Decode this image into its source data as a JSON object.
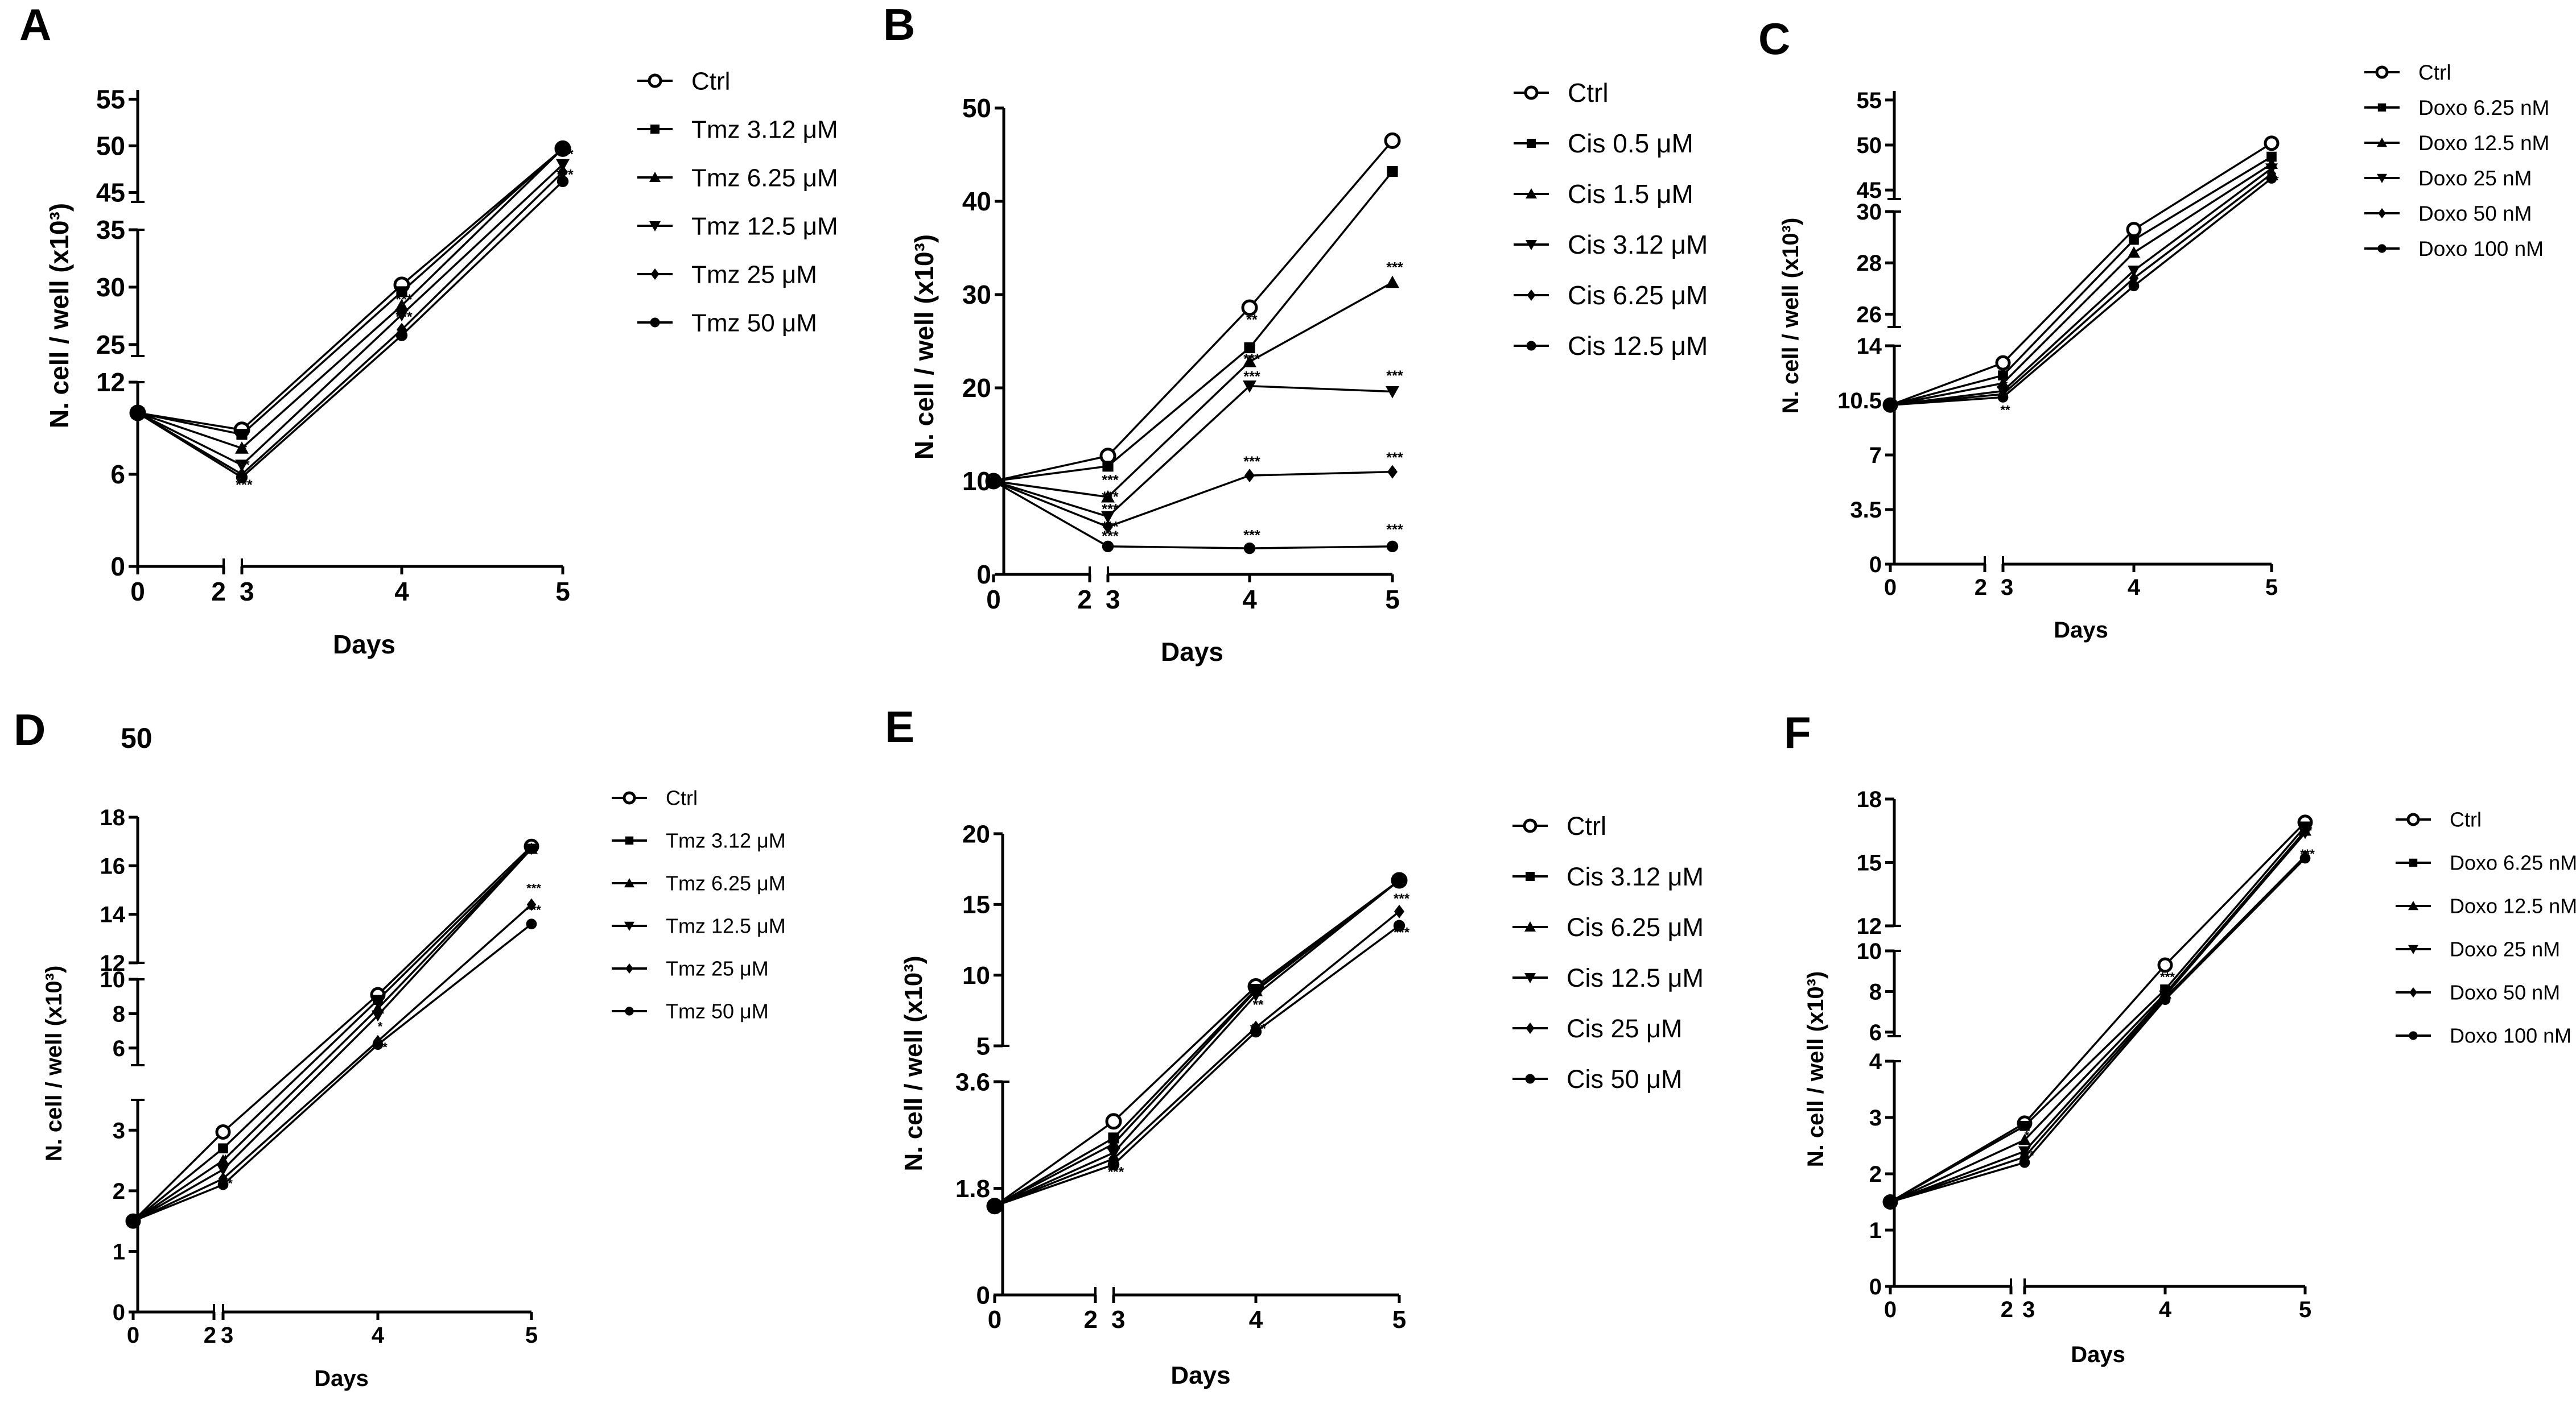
{
  "chart_data": [
    {
      "panel": "A",
      "type": "line",
      "xlabel": "Days",
      "ylabel": "N. cell / well (x10³)",
      "x": [
        0,
        3,
        4,
        5
      ],
      "x_ticks": [
        "0",
        "2",
        "3",
        "4",
        "5"
      ],
      "y_segments": [
        {
          "range": [
            0,
            12
          ],
          "ticks": [
            "0",
            "6",
            "12"
          ]
        },
        {
          "range": [
            24,
            35
          ],
          "ticks": [
            "25",
            "30",
            "35"
          ]
        },
        {
          "range": [
            44,
            56
          ],
          "ticks": [
            "45",
            "50",
            "55"
          ]
        }
      ],
      "series": [
        {
          "name": "Ctrl",
          "marker": "open-circle",
          "values": [
            10,
            8.9,
            30.2,
            49.7
          ]
        },
        {
          "name": "Tmz 3.12 μM",
          "marker": "square",
          "values": [
            10,
            8.6,
            29.6,
            49.7
          ]
        },
        {
          "name": "Tmz 6.25 μM",
          "marker": "triangle-up",
          "values": [
            10,
            7.7,
            28.4,
            49.7
          ]
        },
        {
          "name": "Tmz 12.5 μM",
          "marker": "triangle-down",
          "values": [
            10,
            6.6,
            27.6,
            48.0
          ]
        },
        {
          "name": "Tmz 25 μM",
          "marker": "diamond",
          "values": [
            10,
            6.0,
            26.3,
            47.2
          ]
        },
        {
          "name": "Tmz 50 μM",
          "marker": "circle",
          "values": [
            10,
            5.8,
            25.8,
            46.2
          ]
        }
      ],
      "annotations": [
        {
          "x": 3,
          "y": 7.3,
          "text": "*"
        },
        {
          "x": 3,
          "y": 6.3,
          "text": "**"
        },
        {
          "x": 3,
          "y": 5.0,
          "text": "***"
        },
        {
          "x": 4,
          "y": 28.5,
          "text": "***"
        },
        {
          "x": 4,
          "y": 27.0,
          "text": "***"
        },
        {
          "x": 5,
          "y": 48.6,
          "text": "***"
        },
        {
          "x": 5,
          "y": 46.4,
          "text": "***"
        }
      ]
    },
    {
      "panel": "B",
      "type": "line",
      "xlabel": "Days",
      "ylabel": "N. cell / well (x10³)",
      "x": [
        0,
        3,
        4,
        5
      ],
      "x_ticks": [
        "0",
        "2",
        "3",
        "4",
        "5"
      ],
      "y_segments": [
        {
          "range": [
            0,
            50
          ],
          "ticks": [
            "0",
            "10",
            "20",
            "30",
            "40",
            "50"
          ]
        }
      ],
      "series": [
        {
          "name": "Ctrl",
          "marker": "open-circle",
          "values": [
            10,
            12.7,
            28.6,
            46.5
          ]
        },
        {
          "name": "Cis 0.5 μM",
          "marker": "square",
          "values": [
            10,
            11.6,
            24.3,
            43.2
          ]
        },
        {
          "name": "Cis 1.5 μM",
          "marker": "triangle-up",
          "values": [
            10,
            8.3,
            22.8,
            31.3
          ]
        },
        {
          "name": "Cis 3.12 μM",
          "marker": "triangle-down",
          "values": [
            10,
            6.2,
            20.2,
            19.6
          ]
        },
        {
          "name": "Cis 6.25 μM",
          "marker": "diamond",
          "values": [
            10,
            5.1,
            10.6,
            11.0
          ]
        },
        {
          "name": "Cis 12.5 μM",
          "marker": "circle",
          "values": [
            10,
            3.0,
            2.8,
            3.0
          ]
        }
      ],
      "annotations": [
        {
          "x": 3,
          "y": 9.6,
          "text": "***"
        },
        {
          "x": 3,
          "y": 7.8,
          "text": "***"
        },
        {
          "x": 3,
          "y": 6.5,
          "text": "***"
        },
        {
          "x": 3,
          "y": 4.6,
          "text": "***"
        },
        {
          "x": 3,
          "y": 3.6,
          "text": "***"
        },
        {
          "x": 4,
          "y": 26.8,
          "text": "**"
        },
        {
          "x": 4,
          "y": 22.6,
          "text": "***"
        },
        {
          "x": 4,
          "y": 20.7,
          "text": "***"
        },
        {
          "x": 4,
          "y": 11.6,
          "text": "***"
        },
        {
          "x": 4,
          "y": 3.7,
          "text": "***"
        },
        {
          "x": 5,
          "y": 32.4,
          "text": "***"
        },
        {
          "x": 5,
          "y": 20.8,
          "text": "***"
        },
        {
          "x": 5,
          "y": 12.0,
          "text": "***"
        },
        {
          "x": 5,
          "y": 4.3,
          "text": "***"
        }
      ]
    },
    {
      "panel": "C",
      "type": "line",
      "xlabel": "Days",
      "ylabel": "N. cell / well (x10³)",
      "x": [
        0,
        3,
        4,
        5
      ],
      "x_ticks": [
        "0",
        "2",
        "3",
        "4",
        "5"
      ],
      "y_segments": [
        {
          "range": [
            0,
            14
          ],
          "ticks": [
            "0",
            "3.5",
            "7",
            "10.5",
            "14"
          ]
        },
        {
          "range": [
            25.5,
            30
          ],
          "ticks": [
            "26",
            "28",
            "30"
          ]
        },
        {
          "range": [
            44,
            56
          ],
          "ticks": [
            "45",
            "50",
            "55"
          ]
        }
      ],
      "series": [
        {
          "name": "Ctrl",
          "marker": "open-circle",
          "values": [
            10.2,
            12.9,
            29.3,
            50.2
          ]
        },
        {
          "name": "Doxo 6.25 nM",
          "marker": "square",
          "values": [
            10.2,
            12.1,
            28.9,
            48.7
          ]
        },
        {
          "name": "Doxo 12.5 nM",
          "marker": "triangle-up",
          "values": [
            10.2,
            11.6,
            28.4,
            47.9
          ]
        },
        {
          "name": "Doxo 25 nM",
          "marker": "triangle-down",
          "values": [
            10.2,
            11.1,
            27.7,
            47.4
          ]
        },
        {
          "name": "Doxo 50 nM",
          "marker": "diamond",
          "values": [
            10.2,
            10.9,
            27.4,
            46.8
          ]
        },
        {
          "name": "Doxo 100 nM",
          "marker": "circle",
          "values": [
            10.2,
            10.7,
            27.1,
            46.3
          ]
        }
      ],
      "annotations": [
        {
          "x": 3,
          "y": 11.2,
          "text": "*"
        },
        {
          "x": 3,
          "y": 9.6,
          "text": "**"
        },
        {
          "x": 4,
          "y": 26.9,
          "text": "*"
        },
        {
          "x": 5,
          "y": 45.6,
          "text": "**"
        }
      ]
    },
    {
      "panel": "D",
      "type": "line",
      "xlabel": "Days",
      "ylabel": "N. cell / well (x10³)",
      "x": [
        0,
        3,
        4,
        5
      ],
      "x_ticks": [
        "0",
        "2",
        "3",
        "4",
        "5"
      ],
      "y_segments": [
        {
          "range": [
            0,
            3.5
          ],
          "ticks": [
            "0",
            "1",
            "2",
            "3"
          ]
        },
        {
          "range": [
            5,
            10
          ],
          "ticks": [
            "6",
            "8",
            "10"
          ]
        },
        {
          "range": [
            12,
            18
          ],
          "ticks": [
            "12",
            "14",
            "16",
            "18"
          ]
        }
      ],
      "series": [
        {
          "name": "Ctrl",
          "marker": "open-circle",
          "values": [
            1.5,
            2.97,
            9.1,
            16.8
          ]
        },
        {
          "name": "Tmz 3.12 μM",
          "marker": "square",
          "values": [
            1.5,
            2.7,
            8.8,
            16.7
          ]
        },
        {
          "name": "Tmz 6.25 μM",
          "marker": "triangle-up",
          "values": [
            1.5,
            2.5,
            8.3,
            16.7
          ]
        },
        {
          "name": "Tmz 12.5 μM",
          "marker": "triangle-down",
          "values": [
            1.5,
            2.35,
            7.9,
            16.7
          ]
        },
        {
          "name": "Tmz 25 μM",
          "marker": "diamond",
          "values": [
            1.5,
            2.2,
            6.4,
            14.4
          ]
        },
        {
          "name": "Tmz 50 μM",
          "marker": "circle",
          "values": [
            1.5,
            2.1,
            6.2,
            13.6
          ]
        }
      ],
      "annotations": [
        {
          "x": 3,
          "y": 2.45,
          "text": "*"
        },
        {
          "x": 3,
          "y": 2.05,
          "text": "***"
        },
        {
          "x": 4,
          "y": 7.0,
          "text": "*"
        },
        {
          "x": 4,
          "y": 5.8,
          "text": "***"
        },
        {
          "x": 5,
          "y": 14.9,
          "text": "***"
        },
        {
          "x": 5,
          "y": 14.0,
          "text": "***"
        }
      ]
    },
    {
      "panel": "E",
      "type": "line",
      "xlabel": "Days",
      "ylabel": "N. cell / well (x10³)",
      "x": [
        0,
        3,
        4,
        5
      ],
      "x_ticks": [
        "0",
        "2",
        "3",
        "4",
        "5"
      ],
      "y_segments": [
        {
          "range": [
            0,
            3.6
          ],
          "ticks": [
            "0",
            "1.8",
            "3.6"
          ]
        },
        {
          "range": [
            5,
            20
          ],
          "ticks": [
            "5",
            "10",
            "15",
            "20"
          ]
        }
      ],
      "series": [
        {
          "name": "Ctrl",
          "marker": "open-circle",
          "values": [
            1.5,
            2.93,
            9.2,
            16.7
          ]
        },
        {
          "name": "Cis 3.12 μM",
          "marker": "square",
          "values": [
            1.5,
            2.65,
            9.0,
            16.7
          ]
        },
        {
          "name": "Cis 6.25 μM",
          "marker": "triangle-up",
          "values": [
            1.5,
            2.55,
            8.9,
            16.7
          ]
        },
        {
          "name": "Cis 12.5 μM",
          "marker": "triangle-down",
          "values": [
            1.5,
            2.4,
            8.6,
            16.7
          ]
        },
        {
          "name": "Cis 25 μM",
          "marker": "diamond",
          "values": [
            1.5,
            2.3,
            6.3,
            14.5
          ]
        },
        {
          "name": "Cis 50 μM",
          "marker": "circle",
          "values": [
            1.5,
            2.2,
            6.0,
            13.5
          ]
        }
      ],
      "annotations": [
        {
          "x": 3,
          "y": 2.0,
          "text": "***"
        },
        {
          "x": 4,
          "y": 7.6,
          "text": "**"
        },
        {
          "x": 4,
          "y": 5.9,
          "text": "***"
        },
        {
          "x": 5,
          "y": 15.1,
          "text": "***"
        },
        {
          "x": 5,
          "y": 12.7,
          "text": "***"
        }
      ]
    },
    {
      "panel": "F",
      "type": "line",
      "xlabel": "Days",
      "ylabel": "N. cell / well (x10³)",
      "x": [
        0,
        3,
        4,
        5
      ],
      "x_ticks": [
        "0",
        "2",
        "3",
        "4",
        "5"
      ],
      "y_segments": [
        {
          "range": [
            0,
            4
          ],
          "ticks": [
            "0",
            "1",
            "2",
            "3",
            "4"
          ]
        },
        {
          "range": [
            5.8,
            10
          ],
          "ticks": [
            "6",
            "8",
            "10"
          ]
        },
        {
          "range": [
            12,
            18
          ],
          "ticks": [
            "12",
            "15",
            "18"
          ]
        }
      ],
      "series": [
        {
          "name": "Ctrl",
          "marker": "open-circle",
          "values": [
            1.5,
            2.9,
            9.3,
            16.9
          ]
        },
        {
          "name": "Doxo 6.25 nM",
          "marker": "square",
          "values": [
            1.5,
            2.85,
            8.1,
            16.7
          ]
        },
        {
          "name": "Doxo 12.5 nM",
          "marker": "triangle-up",
          "values": [
            1.5,
            2.6,
            7.9,
            16.5
          ]
        },
        {
          "name": "Doxo 25 nM",
          "marker": "triangle-down",
          "values": [
            1.5,
            2.4,
            7.8,
            16.4
          ]
        },
        {
          "name": "Doxo 50 nM",
          "marker": "diamond",
          "values": [
            1.5,
            2.3,
            7.7,
            15.3
          ]
        },
        {
          "name": "Doxo 100 nM",
          "marker": "circle",
          "values": [
            1.5,
            2.2,
            7.6,
            15.2
          ]
        }
      ],
      "annotations": [
        {
          "x": 3,
          "y": 2.6,
          "text": "*"
        },
        {
          "x": 3,
          "y": 2.25,
          "text": "***"
        },
        {
          "x": 4,
          "y": 8.5,
          "text": "***"
        },
        {
          "x": 5,
          "y": 16.3,
          "text": "**"
        },
        {
          "x": 5,
          "y": 15.2,
          "text": "***"
        }
      ]
    }
  ],
  "stray_label": "50"
}
